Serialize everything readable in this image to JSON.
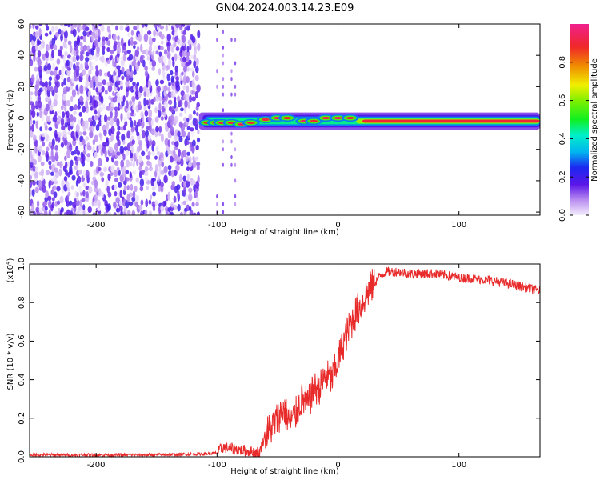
{
  "figure": {
    "title": "GN04.2024.003.14.23.E09"
  },
  "chart_data": [
    {
      "type": "heatmap",
      "xlabel": "Height of straight line (km)",
      "ylabel": "Frequency (Hz)",
      "xlim": [
        -255,
        167
      ],
      "ylim": [
        -62,
        60
      ],
      "x_ticks": [
        "-200",
        "-100",
        "0",
        "100"
      ],
      "x_tick_values": [
        -200,
        -100,
        0,
        100
      ],
      "y_ticks": [
        "60",
        "40",
        "20",
        "0",
        "-20",
        "-40",
        "-60"
      ],
      "y_tick_values": [
        60,
        40,
        20,
        0,
        -20,
        -40,
        -60
      ],
      "colorbar": {
        "label": "Normalized spectral amplitude",
        "range": [
          0,
          1
        ],
        "ticks": [
          "0.0",
          "0.2",
          "0.4",
          "0.6",
          "0.8"
        ],
        "tick_values": [
          0.0,
          0.2,
          0.4,
          0.6,
          0.8
        ]
      },
      "regions": [
        {
          "name": "noise",
          "x_range": [
            -255,
            -115
          ],
          "y_range": [
            -62,
            60
          ],
          "amplitude_range": [
            0.0,
            0.2
          ]
        },
        {
          "name": "signal",
          "x_range": [
            -115,
            167
          ],
          "frequency": -2,
          "amplitude_range": [
            0.3,
            1.0
          ]
        }
      ],
      "grid": false
    },
    {
      "type": "line",
      "xlabel": "Height of straight line (km)",
      "ylabel": "SNR (10 * v/v)",
      "y_scale_label": "(x10",
      "y_scale_exp": "4",
      "y_scale_close": ")",
      "xlim": [
        -255,
        167
      ],
      "ylim": [
        0,
        1.0
      ],
      "x_ticks": [
        "-200",
        "-100",
        "0",
        "100"
      ],
      "x_tick_values": [
        -200,
        -100,
        0,
        100
      ],
      "y_ticks": [
        "0.0",
        "0.2",
        "0.4",
        "0.6",
        "0.8",
        "1.0"
      ],
      "y_tick_values": [
        0.0,
        0.2,
        0.4,
        0.6,
        0.8,
        1.0
      ],
      "series": [
        {
          "color": "#e82a2a",
          "x": [
            -255,
            -200,
            -150,
            -110,
            -100,
            -95,
            -85,
            -75,
            -65,
            -60,
            -55,
            -50,
            -45,
            -40,
            -35,
            -30,
            -25,
            -20,
            -15,
            -10,
            -5,
            0,
            5,
            10,
            15,
            20,
            25,
            30,
            35,
            40,
            50,
            60,
            80,
            100,
            120,
            140,
            160,
            167
          ],
          "values": [
            0.01,
            0.01,
            0.01,
            0.015,
            0.02,
            0.05,
            0.04,
            0.03,
            0.02,
            0.12,
            0.15,
            0.2,
            0.25,
            0.18,
            0.22,
            0.3,
            0.27,
            0.35,
            0.36,
            0.42,
            0.4,
            0.5,
            0.6,
            0.68,
            0.75,
            0.8,
            0.86,
            0.9,
            0.94,
            0.96,
            0.96,
            0.95,
            0.95,
            0.93,
            0.92,
            0.9,
            0.87,
            0.86
          ]
        }
      ],
      "grid": false
    }
  ]
}
